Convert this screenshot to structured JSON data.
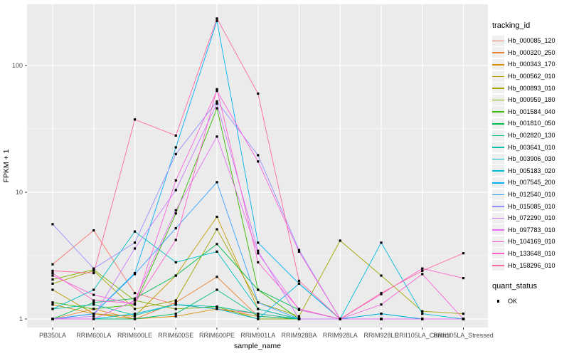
{
  "figure": {
    "background": "#ffffff",
    "panel_background": "#ebebeb",
    "grid_color": "#ffffff",
    "point_color": "#000000",
    "axis_text_color": "#4d4d4d",
    "axis_title_color": "#000000"
  },
  "axes": {
    "x_title": "sample_name",
    "y_title": "FPKM + 1",
    "y_scale": "log10",
    "y_tick_labels": [
      "1",
      "10",
      "100"
    ],
    "y_ticks": [
      1,
      10,
      100
    ],
    "y_minor_ticks": [
      3.1623,
      31.623,
      316.23
    ]
  },
  "legend": {
    "tracking_title": "tracking_id",
    "quant_title": "quant_status",
    "quant_items": [
      {
        "label": "OK",
        "shape": "square"
      }
    ]
  },
  "chart_data": {
    "type": "line",
    "title": "",
    "xlabel": "sample_name",
    "ylabel": "FPKM + 1",
    "log_y": true,
    "ylim": [
      1,
      300
    ],
    "grid": true,
    "legend_position": "right",
    "point_shape": "square",
    "quant_status": "OK",
    "categories": [
      "PB350LA",
      "RRIM600LA",
      "RRIM600LE",
      "RRIM600SE",
      "RRIM600PE",
      "RRIM901LA",
      "RRIM928BA",
      "RRIM928LA",
      "RRIM928LE",
      "RRII105LA_Control",
      "RRII105LA_Stressed"
    ],
    "series": [
      {
        "name": "Hb_000085_120",
        "color": "#F8766D",
        "values": [
          2.7,
          5.0,
          1.6,
          1.3,
          1.2,
          1.1,
          1.0,
          1.0,
          1.0,
          1.0,
          1.0
        ]
      },
      {
        "name": "Hb_000320_250",
        "color": "#EA8331",
        "values": [
          1.0,
          1.2,
          1.0,
          1.35,
          2.15,
          1.05,
          1.0,
          1.0,
          1.0,
          1.0,
          1.0
        ]
      },
      {
        "name": "Hb_000343_170",
        "color": "#D89000",
        "values": [
          1.3,
          1.1,
          1.0,
          1.05,
          1.2,
          1.05,
          1.0,
          1.0,
          1.0,
          1.0,
          1.0
        ]
      },
      {
        "name": "Hb_000562_010",
        "color": "#C09B00",
        "values": [
          1.7,
          1.1,
          1.05,
          2.2,
          6.4,
          1.2,
          1.0,
          1.0,
          1.0,
          1.0,
          1.0
        ]
      },
      {
        "name": "Hb_000893_010",
        "color": "#A3A500",
        "values": [
          1.9,
          2.4,
          1.2,
          1.4,
          5.1,
          1.35,
          1.05,
          4.15,
          2.2,
          1.15,
          1.1
        ]
      },
      {
        "name": "Hb_000959_180",
        "color": "#7CAE00",
        "values": [
          2.05,
          2.45,
          1.4,
          1.2,
          1.25,
          1.0,
          1.0,
          1.0,
          1.0,
          1.0,
          1.0
        ]
      },
      {
        "name": "Hb_001584_040",
        "color": "#39B600",
        "values": [
          1.35,
          1.2,
          1.3,
          6.8,
          46,
          1.7,
          1.0,
          1.0,
          1.0,
          1.0,
          1.0
        ]
      },
      {
        "name": "Hb_001810_050",
        "color": "#00BB4E",
        "values": [
          1.0,
          1.35,
          1.45,
          2.2,
          3.9,
          1.7,
          1.18,
          1.0,
          1.1,
          1.0,
          1.0
        ]
      },
      {
        "name": "Hb_002820_130",
        "color": "#00BF7D",
        "values": [
          1.0,
          1.0,
          1.0,
          1.1,
          1.7,
          1.05,
          1.0,
          1.0,
          1.0,
          1.0,
          1.0
        ]
      },
      {
        "name": "Hb_003641_010",
        "color": "#00C1A3",
        "values": [
          1.2,
          1.3,
          1.07,
          1.3,
          1.25,
          1.1,
          1.0,
          1.0,
          1.0,
          1.0,
          1.0
        ]
      },
      {
        "name": "Hb_003906_030",
        "color": "#00BFC4",
        "values": [
          1.2,
          1.7,
          4.9,
          2.8,
          3.4,
          1.2,
          1.0,
          1.0,
          1.0,
          1.0,
          1.0
        ]
      },
      {
        "name": "Hb_005183_020",
        "color": "#00BAE0",
        "values": [
          1.0,
          1.0,
          1.1,
          1.3,
          1.2,
          1.0,
          1.9,
          1.0,
          4.0,
          1.1,
          1.0
        ]
      },
      {
        "name": "Hb_007545_200",
        "color": "#00B0F6",
        "values": [
          1.0,
          1.1,
          2.3,
          22.6,
          225,
          4.0,
          1.9,
          1.0,
          1.1,
          1.0,
          1.0
        ]
      },
      {
        "name": "Hb_012540_010",
        "color": "#35A2FF",
        "values": [
          1.0,
          1.1,
          2.26,
          5.2,
          12,
          1.35,
          1.0,
          1.0,
          1.0,
          1.0,
          1.0
        ]
      },
      {
        "name": "Hb_015085_010",
        "color": "#9590FF",
        "values": [
          5.6,
          2.5,
          4.0,
          20,
          52,
          19.6,
          3.5,
          1.0,
          1.0,
          1.0,
          1.0
        ]
      },
      {
        "name": "Hb_072290_010",
        "color": "#C77CFF",
        "values": [
          1.0,
          1.05,
          3.6,
          10.4,
          50,
          3.45,
          1.0,
          1.0,
          1.0,
          1.0,
          1.0
        ]
      },
      {
        "name": "Hb_097783_010",
        "color": "#E76BF3",
        "values": [
          1.0,
          1.0,
          1.4,
          7.2,
          27.5,
          3.3,
          1.18,
          1.0,
          1.0,
          1.0,
          1.0
        ]
      },
      {
        "name": "Hb_104169_010",
        "color": "#FA62DB",
        "values": [
          2.2,
          1.55,
          1.3,
          12.4,
          63,
          17.5,
          3.4,
          1.0,
          1.3,
          2.26,
          1.0
        ]
      },
      {
        "name": "Hb_133648_010",
        "color": "#FF61CC",
        "values": [
          2.3,
          1.4,
          1.33,
          4.2,
          65,
          2.8,
          1.2,
          1.0,
          1.57,
          2.5,
          2.1
        ]
      },
      {
        "name": "Hb_158296_010",
        "color": "#FF67A4",
        "values": [
          2.4,
          2.3,
          37.5,
          28,
          235,
          60,
          2.0,
          1.0,
          1.6,
          2.4,
          3.3
        ]
      }
    ]
  }
}
